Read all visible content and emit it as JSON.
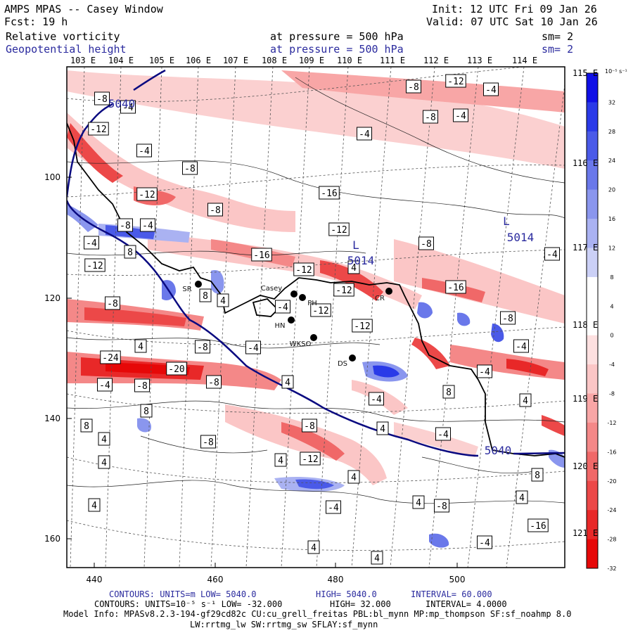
{
  "header": {
    "title": "AMPS MPAS -- Casey Window",
    "forecast": "Fcst:   19 h",
    "init": "Init: 12 UTC Fri 09 Jan 26",
    "valid": "Valid: 07 UTC Sat 10 Jan 26",
    "field1": "Relative vorticity",
    "field1_level": "at pressure =  500 hPa",
    "field1_sm": "sm= 2",
    "field2": "Geopotential height",
    "field2_level": "at pressure =  500 hPa",
    "field2_sm": "sm= 2"
  },
  "map": {
    "lon_labels_top": [
      "103 E",
      "104 E",
      "105 E",
      "106 E",
      "107 E",
      "108 E",
      "109 E",
      "110 E",
      "111 E",
      "112 E",
      "113 E",
      "114 E"
    ],
    "lat_labels_right": [
      "115 E",
      "116 E",
      "117 E",
      "118 E",
      "119 E",
      "120 E",
      "121 E"
    ],
    "x_ticks": [
      "440",
      "460",
      "480",
      "500"
    ],
    "y_ticks": [
      "100",
      "120",
      "140",
      "160"
    ],
    "stations": [
      "SR",
      "Casey",
      "PH",
      "CR",
      "HN",
      "WKSO",
      "DS"
    ],
    "height_labels": [
      "5040",
      "5014",
      "5014",
      "5040"
    ],
    "low_markers": [
      "L",
      "L"
    ],
    "contour_labels": [
      "-8",
      "-4",
      "-12",
      "-4",
      "-8",
      "-8",
      "-12",
      "-4",
      "-8",
      "-4",
      "-4",
      "-16",
      "-12",
      "-8",
      "-12",
      "-4",
      "8",
      "-12",
      "-8",
      "-4",
      "-16",
      "-12",
      "4",
      "-12",
      "-8",
      "-4",
      "8",
      "4",
      "-12",
      "-16",
      "-8",
      "-4",
      "-12",
      "-8",
      "4",
      "-4",
      "-8",
      "-24",
      "-20",
      "-8",
      "4",
      "-4",
      "-8",
      "-4",
      "8",
      "8",
      "-4",
      "-4",
      "8",
      "-8",
      "4",
      "4",
      "4",
      "4",
      "-12",
      "4",
      "-4",
      "-8",
      "4",
      "8",
      "4",
      "-8",
      "4",
      "4",
      "4",
      "4",
      "-4",
      "-16",
      "-4"
    ]
  },
  "colorbar": {
    "units": "10⁻⁵ s⁻¹",
    "labels": [
      "32",
      "28",
      "24",
      "20",
      "16",
      "12",
      "8",
      "4",
      "0",
      "-4",
      "-8",
      "-12",
      "-16",
      "-20",
      "-24",
      "-28",
      "-32"
    ],
    "colors": [
      "#1010e6",
      "#2a3ae8",
      "#4a5ae8",
      "#6a78ea",
      "#8a96ee",
      "#aab2f2",
      "#cbd0f6",
      "#ffffff",
      "#ffffff",
      "#fde0e0",
      "#fbc6c6",
      "#f8a6a6",
      "#f48888",
      "#f06868",
      "#ec4848",
      "#e82828",
      "#e60808"
    ]
  },
  "footer": {
    "line1_a": "CONTOURS:  UNITS=m  LOW=  5040.0",
    "line1_b": "HIGH=  5040.0",
    "line1_c": "INTERVAL=  60.000",
    "line2_a": "CONTOURS:  UNITS=10⁻⁵ s⁻¹   LOW= -32.000",
    "line2_b": "HIGH=  32.000",
    "line2_c": "INTERVAL=   4.0000",
    "line3": "Model Info: MPASv8.2.3-194-gf29cd82c CU:cu_grell_freitas PBL:bl_mynn MP:mp_thompson SF:sf_noahmp 8.0",
    "line4": "LW:rrtmg_lw SW:rrtmg_sw SFLAY:sf_mynn"
  }
}
